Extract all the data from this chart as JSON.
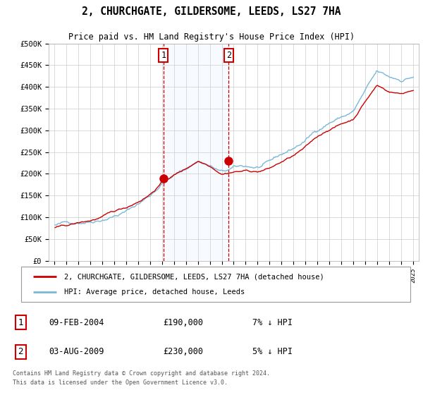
{
  "title": "2, CHURCHGATE, GILDERSOME, LEEDS, LS27 7HA",
  "subtitle": "Price paid vs. HM Land Registry's House Price Index (HPI)",
  "footer": "Contains HM Land Registry data © Crown copyright and database right 2024.\nThis data is licensed under the Open Government Licence v3.0.",
  "legend_line1": "2, CHURCHGATE, GILDERSOME, LEEDS, LS27 7HA (detached house)",
  "legend_line2": "HPI: Average price, detached house, Leeds",
  "transaction1_date": "09-FEB-2004",
  "transaction1_price": "£190,000",
  "transaction1_hpi": "7% ↓ HPI",
  "transaction2_date": "03-AUG-2009",
  "transaction2_price": "£230,000",
  "transaction2_hpi": "5% ↓ HPI",
  "hpi_color": "#7ab8d9",
  "price_color": "#cc0000",
  "background_color": "#ffffff",
  "plot_bg_color": "#ffffff",
  "grid_color": "#cccccc",
  "shade_color": "#ddeeff",
  "t1_year": 2004.12,
  "t1_y": 190000,
  "t2_year": 2009.58,
  "t2_y": 230000,
  "shade_x1": 2004.12,
  "shade_x2": 2009.58,
  "ylim_min": 0,
  "ylim_max": 500000,
  "yticks": [
    0,
    50000,
    100000,
    150000,
    200000,
    250000,
    300000,
    350000,
    400000,
    450000,
    500000
  ],
  "xmin": 1994.5,
  "xmax": 2025.5
}
